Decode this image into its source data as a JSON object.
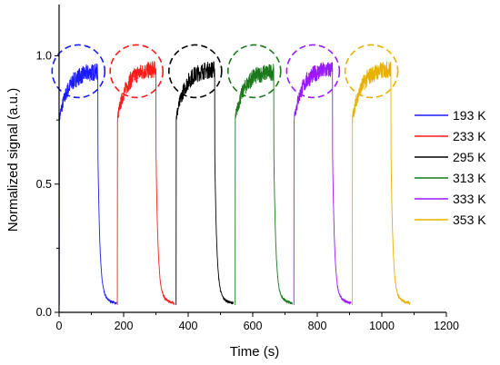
{
  "chart_data": {
    "type": "line",
    "xlabel": "Time (s)",
    "ylabel": "Normalized signal (a.u.)",
    "xlim": [
      0,
      1200
    ],
    "ylim": [
      0,
      1.2
    ],
    "x_ticks": [
      0,
      200,
      400,
      600,
      800,
      1000,
      1200
    ],
    "x_tick_labels": [
      "0",
      "200",
      "400",
      "600",
      "800",
      "1000",
      "1200"
    ],
    "y_ticks": [
      0.0,
      0.5,
      1.0
    ],
    "y_tick_labels": [
      "0.0",
      "0.5",
      "1.0"
    ],
    "grid": false,
    "legend_position": "right",
    "series": [
      {
        "name": "193 K",
        "color": "#1a1aff",
        "on": 0,
        "off": 120,
        "end": 178,
        "plateau": 0.94
      },
      {
        "name": "233 K",
        "color": "#ff1a1a",
        "on": 180,
        "off": 300,
        "end": 358,
        "plateau": 0.95
      },
      {
        "name": "295 K",
        "color": "#000000",
        "on": 362,
        "off": 482,
        "end": 540,
        "plateau": 0.95
      },
      {
        "name": "313 K",
        "color": "#1a7a1a",
        "on": 545,
        "off": 665,
        "end": 723,
        "plateau": 0.94
      },
      {
        "name": "333 K",
        "color": "#9a1aff",
        "on": 727,
        "off": 847,
        "end": 905,
        "plateau": 0.95
      },
      {
        "name": "353 K",
        "color": "#e8b000",
        "on": 908,
        "off": 1028,
        "end": 1088,
        "plateau": 0.95
      }
    ],
    "annotations": [
      {
        "shape": "dashed-circle",
        "series": "193 K",
        "x": 60,
        "y": 0.94
      },
      {
        "shape": "dashed-circle",
        "series": "233 K",
        "x": 240,
        "y": 0.94
      },
      {
        "shape": "dashed-circle",
        "series": "295 K",
        "x": 422,
        "y": 0.94
      },
      {
        "shape": "dashed-circle",
        "series": "313 K",
        "x": 605,
        "y": 0.94
      },
      {
        "shape": "dashed-circle",
        "series": "333 K",
        "x": 787,
        "y": 0.94
      },
      {
        "shape": "dashed-circle",
        "series": "353 K",
        "x": 968,
        "y": 0.94
      }
    ]
  }
}
